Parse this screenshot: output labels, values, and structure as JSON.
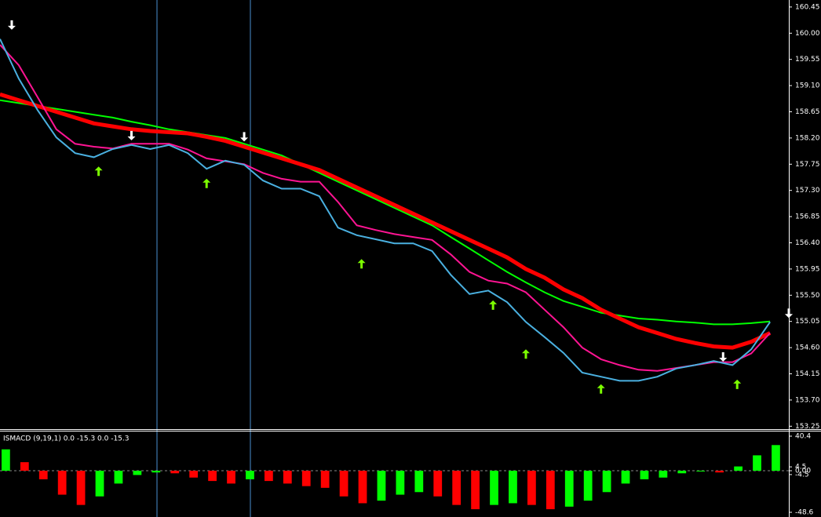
{
  "chart_data": [
    {
      "type": "line",
      "x": [
        0,
        4,
        8,
        12,
        16,
        20,
        24,
        28,
        32,
        36,
        40,
        44,
        48,
        52,
        56,
        60,
        64,
        68,
        72,
        76,
        80,
        84,
        88,
        92,
        96,
        100,
        104,
        108,
        112,
        116,
        120,
        124,
        128,
        132,
        136,
        140,
        144,
        148,
        152,
        156,
        160,
        164
      ],
      "xlim": [
        0,
        168
      ],
      "ylim": [
        153.2,
        160.57
      ],
      "yticks": [
        {
          "value": 160.45,
          "label": "160.45"
        },
        {
          "value": 160,
          "label": "160.00"
        },
        {
          "value": 159.55,
          "label": "159.55"
        },
        {
          "value": 159.1,
          "label": "159.10"
        },
        {
          "value": 158.65,
          "label": "158.65"
        },
        {
          "value": 158.2,
          "label": "158.20"
        },
        {
          "value": 157.75,
          "label": "157.75"
        },
        {
          "value": 157.3,
          "label": "157.30"
        },
        {
          "value": 156.85,
          "label": "156.85"
        },
        {
          "value": 156.4,
          "label": "156.40"
        },
        {
          "value": 155.95,
          "label": "155.95"
        },
        {
          "value": 155.5,
          "label": "155.50"
        },
        {
          "value": 155.05,
          "label": "155.05"
        },
        {
          "value": 154.6,
          "label": "154.60"
        },
        {
          "value": 154.15,
          "label": "154.15"
        },
        {
          "value": 153.7,
          "label": "153.70"
        },
        {
          "value": 153.25,
          "label": "153.25"
        }
      ],
      "series": [
        {
          "color": "#00ff00",
          "values": [
            158.85,
            158.8,
            158.75,
            158.7,
            158.65,
            158.6,
            158.55,
            158.48,
            158.42,
            158.35,
            158.3,
            158.25,
            158.2,
            158.1,
            158.0,
            157.9,
            157.75,
            157.6,
            157.45,
            157.3,
            157.15,
            157.0,
            156.85,
            156.7,
            156.5,
            156.3,
            156.1,
            155.9,
            155.72,
            155.55,
            155.4,
            155.3,
            155.2,
            155.15,
            155.1,
            155.08,
            155.05,
            155.03,
            155.0,
            155.0,
            155.02,
            155.05
          ]
        },
        {
          "color": "#ff0000",
          "values": [
            158.95,
            158.85,
            158.75,
            158.65,
            158.55,
            158.45,
            158.4,
            158.35,
            158.32,
            158.3,
            158.28,
            158.22,
            158.15,
            158.05,
            157.95,
            157.85,
            157.75,
            157.65,
            157.5,
            157.35,
            157.2,
            157.05,
            156.9,
            156.75,
            156.6,
            156.45,
            156.3,
            156.15,
            155.95,
            155.8,
            155.6,
            155.45,
            155.25,
            155.1,
            154.95,
            154.85,
            154.75,
            154.68,
            154.62,
            154.6,
            154.7,
            154.85
          ]
        },
        {
          "color": "#ff1493",
          "values": [
            159.8,
            159.45,
            158.9,
            158.35,
            158.1,
            158.05,
            158.02,
            158.1,
            158.1,
            158.1,
            158.0,
            157.85,
            157.8,
            157.75,
            157.6,
            157.5,
            157.45,
            157.45,
            157.1,
            156.7,
            156.62,
            156.55,
            156.5,
            156.45,
            156.2,
            155.9,
            155.75,
            155.7,
            155.55,
            155.25,
            154.95,
            154.6,
            154.4,
            154.3,
            154.22,
            154.2,
            154.25,
            154.3,
            154.35,
            154.35,
            154.5,
            154.85
          ]
        },
        {
          "color": "#4ab0e0",
          "values": [
            159.9,
            159.22,
            158.68,
            158.21,
            157.94,
            157.87,
            158.01,
            158.08,
            158.01,
            158.08,
            157.94,
            157.67,
            157.81,
            157.74,
            157.47,
            157.33,
            157.33,
            157.2,
            156.66,
            156.53,
            156.46,
            156.39,
            156.39,
            156.26,
            155.85,
            155.52,
            155.58,
            155.38,
            155.04,
            154.78,
            154.51,
            154.17,
            154.1,
            154.03,
            154.03,
            154.1,
            154.24,
            154.3,
            154.37,
            154.3,
            154.57,
            155.04
          ]
        }
      ],
      "signals": {
        "up": {
          "color": "#7cfc00",
          "x": [
            21,
            44,
            77,
            105,
            112,
            128,
            157
          ],
          "y": [
            157.63,
            157.42,
            156.04,
            155.33,
            154.49,
            153.89,
            153.97
          ]
        },
        "down": {
          "color": "#ffffff",
          "x": [
            2.5,
            28,
            52,
            154,
            168
          ],
          "y": [
            160.14,
            158.24,
            158.22,
            154.44,
            155.19
          ]
        }
      }
    },
    {
      "type": "bar",
      "title": "ISMACD (9,19,1) 0.0 -15.3 0.0 -15.3",
      "x": [
        0,
        4,
        8,
        12,
        16,
        20,
        24,
        28,
        32,
        36,
        40,
        44,
        48,
        52,
        56,
        60,
        64,
        68,
        72,
        76,
        80,
        84,
        88,
        92,
        96,
        100,
        104,
        108,
        112,
        116,
        120,
        124,
        128,
        132,
        136,
        140,
        144,
        148,
        152,
        156,
        160,
        164
      ],
      "xlim": [
        0,
        168
      ],
      "ylim": [
        -54.1,
        46.8
      ],
      "yticks": [
        40.4,
        4.5,
        {
          "value": 0,
          "label": "0.00"
        },
        -4.5,
        -48.6
      ],
      "up_color": "#00ff00",
      "down_color": "#ff0000",
      "values": [
        25,
        10,
        -10,
        -28,
        -40,
        -30,
        -15,
        -5,
        -2,
        -3,
        -8,
        -12,
        -15,
        -10,
        -12,
        -15,
        -18,
        -20,
        -30,
        -38,
        -35,
        -28,
        -25,
        -30,
        -40,
        -45,
        -40,
        -38,
        -40,
        -45,
        -42,
        -35,
        -25,
        -15,
        -10,
        -8,
        -3,
        0,
        -2,
        5,
        18,
        30
      ]
    }
  ]
}
